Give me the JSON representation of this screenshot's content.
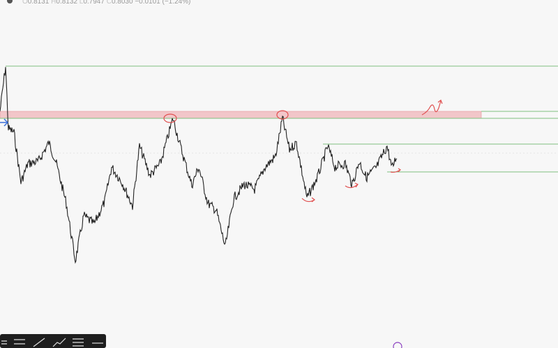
{
  "header": {
    "open_label": "O",
    "open": "0.8131",
    "high_label": "H",
    "high": "0.8132",
    "low_label": "L",
    "low": "0.7947",
    "close_label": "C",
    "close": "0.8030",
    "change": "−0.0101 (−1.24%)"
  }
}
